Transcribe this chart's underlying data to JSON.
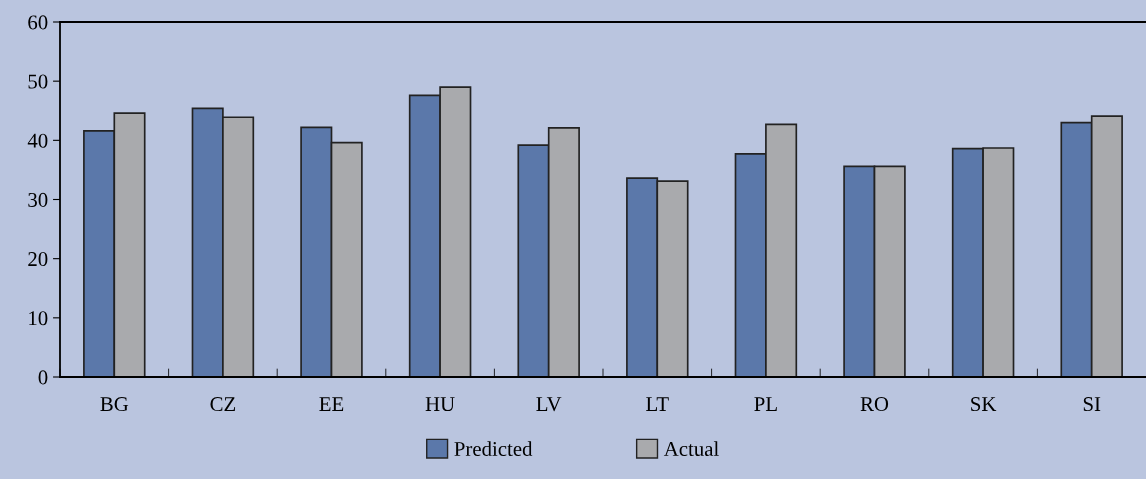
{
  "chart_data": {
    "type": "bar",
    "categories": [
      "BG",
      "CZ",
      "EE",
      "HU",
      "LV",
      "LT",
      "PL",
      "RO",
      "SK",
      "SI"
    ],
    "series": [
      {
        "name": "Predicted",
        "color": "#5b78aa",
        "values": [
          41.6,
          45.4,
          42.2,
          47.6,
          39.2,
          33.6,
          37.7,
          35.6,
          38.6,
          43.0
        ]
      },
      {
        "name": "Actual",
        "color": "#a9aaad",
        "values": [
          44.6,
          43.9,
          39.6,
          49.0,
          42.1,
          33.1,
          42.7,
          35.6,
          38.7,
          44.1
        ]
      }
    ],
    "ylim": [
      0,
      60
    ],
    "yticks": [
      0,
      10,
      20,
      30,
      40,
      50,
      60
    ],
    "grid": false,
    "legend": "bottom"
  }
}
